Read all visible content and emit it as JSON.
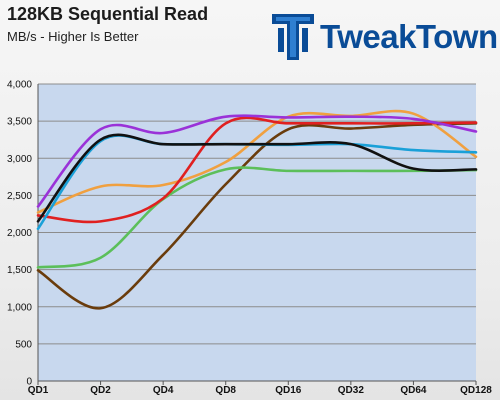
{
  "header": {
    "title": "128KB Sequential Read",
    "subtitle": "MB/s - Higher Is Better",
    "logo_text": "TweakTown"
  },
  "colors": {
    "plot_bg": "#c8d8ee",
    "grid": "#8c8c8c"
  },
  "chart_data": {
    "type": "line",
    "title": "128KB Sequential Read",
    "subtitle": "MB/s - Higher Is Better",
    "xlabel": "",
    "ylabel": "",
    "ylim": [
      0,
      4000
    ],
    "yticks": [
      0,
      500,
      1000,
      1500,
      2000,
      2500,
      3000,
      3500,
      4000
    ],
    "ytick_labels": [
      "0",
      "500",
      "1,000",
      "1,500",
      "2,000",
      "2,500",
      "3,000",
      "3,500",
      "4,000"
    ],
    "grid": true,
    "legend": "none",
    "categories": [
      "QD1",
      "QD2",
      "QD4",
      "QD8",
      "QD16",
      "QD32",
      "QD64",
      "QD128"
    ],
    "series": [
      {
        "color": "#6a3c0c",
        "values": [
          1490,
          980,
          1700,
          2650,
          3390,
          3400,
          3450,
          3470
        ]
      },
      {
        "color": "#5cbf5a",
        "values": [
          1530,
          1660,
          2450,
          2850,
          2830,
          2830,
          2830,
          2840
        ]
      },
      {
        "color": "#f0a040",
        "values": [
          2270,
          2620,
          2640,
          2950,
          3560,
          3570,
          3600,
          3020
        ]
      },
      {
        "color": "#e02020",
        "values": [
          2230,
          2150,
          2460,
          3470,
          3470,
          3470,
          3470,
          3480
        ]
      },
      {
        "color": "#1aa0d8",
        "values": [
          2050,
          3230,
          3190,
          3190,
          3180,
          3190,
          3110,
          3080
        ]
      },
      {
        "color": "#111111",
        "values": [
          2150,
          3250,
          3190,
          3190,
          3190,
          3190,
          2860,
          2850
        ]
      },
      {
        "color": "#9a32d8",
        "values": [
          2350,
          3390,
          3340,
          3560,
          3550,
          3560,
          3530,
          3360
        ]
      }
    ]
  }
}
